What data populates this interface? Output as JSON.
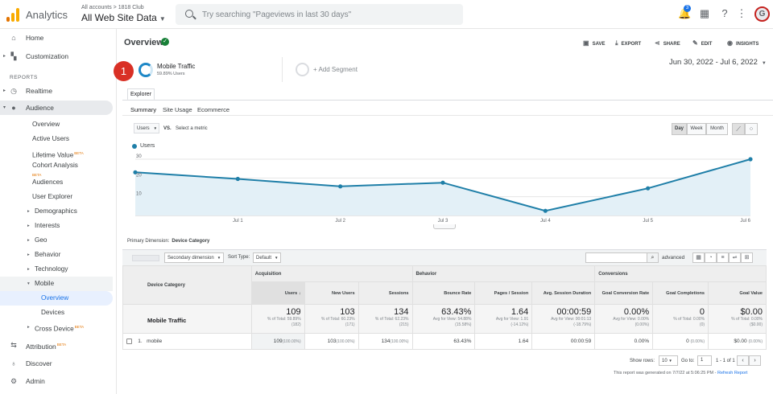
{
  "header": {
    "app_title": "Analytics",
    "account_path": "All accounts > 1818 Club",
    "view_name": "All Web Site Data",
    "search_placeholder": "Try searching \"Pageviews in last 30 days\"",
    "notifications_count": "3",
    "avatar_letter": "G"
  },
  "sidebar": {
    "home": "Home",
    "customization": "Customization",
    "section_reports": "REPORTS",
    "realtime": "Realtime",
    "audience": "Audience",
    "audience_items": [
      "Overview",
      "Active Users",
      "Lifetime Value",
      "Cohort Analysis",
      "Audiences",
      "User Explorer",
      "Demographics",
      "Interests",
      "Geo",
      "Behavior",
      "Technology",
      "Mobile"
    ],
    "mobile_items": [
      "Overview",
      "Devices"
    ],
    "cross_device": "Cross Device",
    "beta_label": "BETA",
    "attribution": "Attribution",
    "discover": "Discover",
    "admin": "Admin"
  },
  "page": {
    "title": "Overview",
    "save": "SAVE",
    "export": "EXPORT",
    "share": "SHARE",
    "edit": "EDIT",
    "insights": "INSIGHTS",
    "step_badge": "1",
    "segment_name": "Mobile Traffic",
    "segment_sub": "59.89% Users",
    "add_segment": "+ Add Segment",
    "date_range": "Jun 30, 2022 - Jul 6, 2022",
    "explorer_tab": "Explorer",
    "subtabs": [
      "Summary",
      "Site Usage",
      "Ecommerce"
    ],
    "metric": "Users",
    "vs": "VS.",
    "select_metric": "Select a metric",
    "granularity": [
      "Day",
      "Week",
      "Month"
    ],
    "legend": "Users",
    "primary_dimension_label": "Primary Dimension:",
    "primary_dimension_value": "Device Category",
    "secondary_dimension": "Secondary dimension",
    "sort_type_label": "Sort Type:",
    "sort_type_value": "Default",
    "advanced": "advanced"
  },
  "chart_data": {
    "type": "area",
    "series": [
      {
        "name": "Users",
        "values": [
          23,
          19.5,
          15.5,
          17.5,
          2.5,
          14.5,
          30
        ]
      }
    ],
    "x": [
      "",
      "Jul 1",
      "Jul 2",
      "Jul 3",
      "Jul 4",
      "Jul 5",
      "Jul 6"
    ],
    "yticks": [
      "30",
      "20",
      "10"
    ],
    "ylim": [
      0,
      30
    ],
    "color": "#1f7fa8",
    "fill": "#e3f0f7",
    "grid": true
  },
  "table": {
    "dim_header": "Device Category",
    "group_acq": "Acquisition",
    "group_beh": "Behavior",
    "group_conv": "Conversions",
    "cols": [
      "Users",
      "New Users",
      "Sessions",
      "Bounce Rate",
      "Pages / Session",
      "Avg. Session Duration",
      "Goal Conversion Rate",
      "Goal Completions",
      "Goal Value"
    ],
    "total_label": "Mobile Traffic",
    "totals": [
      {
        "v": "109",
        "s1": "% of Total: 59.89%",
        "s2": "(182)"
      },
      {
        "v": "103",
        "s1": "% of Total: 60.23%",
        "s2": "(171)"
      },
      {
        "v": "134",
        "s1": "% of Total: 62.23%",
        "s2": "(215)"
      },
      {
        "v": "63.43%",
        "s1": "Avg for View: 54.88%",
        "s2": "(15.58%)"
      },
      {
        "v": "1.64",
        "s1": "Avg for View: 1.91",
        "s2": "(-14.12%)"
      },
      {
        "v": "00:00:59",
        "s1": "Avg for View: 00:01:13",
        "s2": "(-18.79%)"
      },
      {
        "v": "0.00%",
        "s1": "Avg for View: 0.00%",
        "s2": "(0.00%)"
      },
      {
        "v": "0",
        "s1": "% of Total: 0.00%",
        "s2": "(0)"
      },
      {
        "v": "$0.00",
        "s1": "% of Total: 0.00%",
        "s2": "($0.00)"
      }
    ],
    "row": {
      "index": "1.",
      "device": "mobile",
      "users": "109",
      "users_pct": "(100.00%)",
      "new_users": "103",
      "new_users_pct": "(100.00%)",
      "sessions": "134",
      "sessions_pct": "(100.00%)",
      "bounce": "63.43%",
      "pages": "1.64",
      "duration": "00:00:59",
      "gcr": "0.00%",
      "gc": "0",
      "gc_pct": "(0.00%)",
      "gv": "$0.00",
      "gv_pct": "(0.00%)"
    }
  },
  "pager": {
    "show_rows": "Show rows:",
    "rows_value": "10",
    "goto": "Go to:",
    "goto_value": "1",
    "range": "1 - 1 of 1"
  },
  "footer": {
    "generated": "This report was generated on 7/7/22 at 5:06:25 PM -",
    "refresh": "Refresh Report"
  }
}
